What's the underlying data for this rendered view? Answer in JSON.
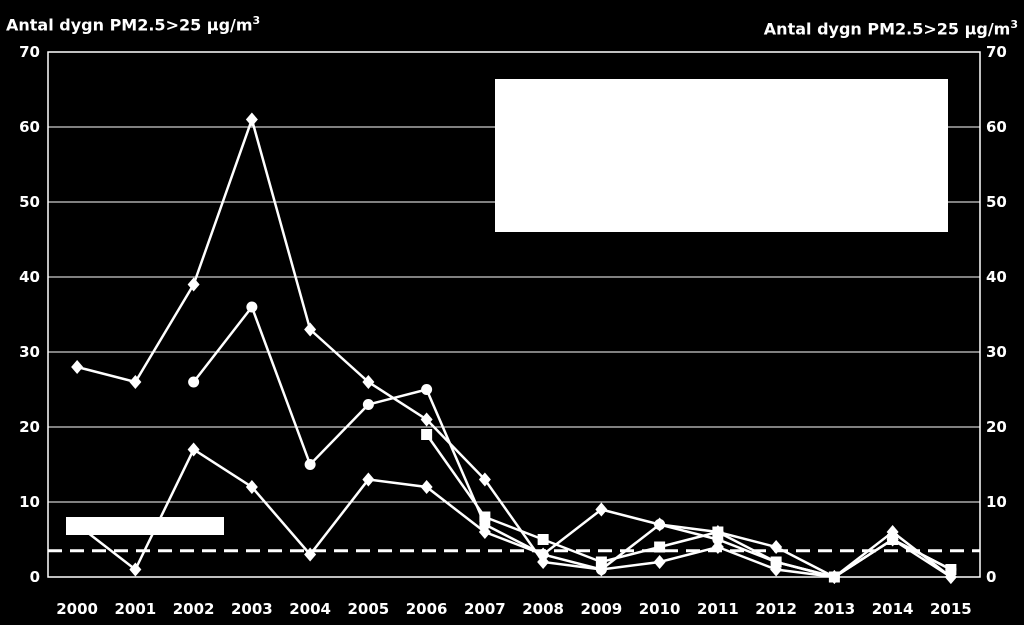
{
  "chart_data": {
    "type": "line",
    "ylabel_left": "Antal dygn PM2.5>25 µg/m",
    "ylabel_right": "Antal dygn PM2.5>25 µg/m",
    "ylabel_sup": "3",
    "x": [
      "2000",
      "2001",
      "2002",
      "2003",
      "2004",
      "2005",
      "2006",
      "2007",
      "2008",
      "2009",
      "2010",
      "2011",
      "2012",
      "2013",
      "2014",
      "2015"
    ],
    "ylim": [
      0,
      70
    ],
    "yticks": [
      0,
      10,
      20,
      30,
      40,
      50,
      60,
      70
    ],
    "grid": true,
    "legend": "top-right, blank box",
    "threshold": 3.5,
    "series": [
      {
        "marker": "diamond",
        "values": [
          28,
          26,
          39,
          61,
          33,
          26,
          21,
          13,
          2,
          1,
          2,
          4,
          1,
          0,
          6,
          0
        ]
      },
      {
        "marker": "diamond",
        "values": [
          7,
          1,
          17,
          12,
          3,
          13,
          12,
          6,
          3,
          9,
          7,
          6,
          4,
          0,
          5,
          0
        ]
      },
      {
        "marker": "circle",
        "values": [
          null,
          null,
          26,
          36,
          15,
          23,
          25,
          7,
          3,
          1,
          7,
          5,
          2,
          0,
          5,
          1
        ]
      },
      {
        "marker": "square",
        "values": [
          null,
          null,
          null,
          null,
          null,
          null,
          19,
          8,
          5,
          2,
          4,
          6,
          2,
          0,
          5,
          1
        ]
      }
    ]
  }
}
